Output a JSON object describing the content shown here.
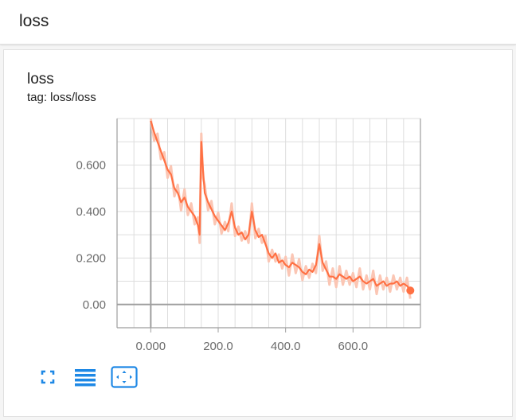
{
  "header": {
    "title": "loss"
  },
  "card": {
    "title": "loss",
    "tag": "tag: loss/loss"
  },
  "colors": {
    "series": "#ff7043",
    "series_light": "#fbc6b4",
    "icon": "#1e88e5",
    "grid": "#dddddd",
    "axis": "#9e9e9e"
  },
  "icons": [
    "fit-domain-icon",
    "toggle-log-scale-icon",
    "reset-zoom-icon"
  ],
  "chart_data": {
    "type": "line",
    "title": "",
    "xlabel": "",
    "ylabel": "",
    "xlim": [
      -100,
      800
    ],
    "ylim": [
      -0.1,
      0.8
    ],
    "x_ticks": [
      0,
      200,
      400,
      600
    ],
    "x_tick_labels": [
      "0.000",
      "200.0",
      "400.0",
      "600.0"
    ],
    "y_ticks": [
      0,
      0.2,
      0.4,
      0.6
    ],
    "y_tick_labels": [
      "0.00",
      "0.200",
      "0.400",
      "0.600"
    ],
    "grid": true,
    "series": [
      {
        "name": "",
        "smoothed": true,
        "x": [
          0,
          10,
          20,
          30,
          40,
          50,
          60,
          70,
          80,
          90,
          100,
          110,
          120,
          130,
          140,
          145,
          150,
          155,
          160,
          170,
          180,
          190,
          200,
          210,
          220,
          230,
          240,
          250,
          260,
          270,
          280,
          290,
          300,
          310,
          320,
          330,
          340,
          350,
          360,
          370,
          380,
          390,
          400,
          410,
          420,
          430,
          440,
          450,
          460,
          470,
          480,
          490,
          500,
          510,
          520,
          530,
          540,
          550,
          560,
          570,
          580,
          590,
          600,
          610,
          620,
          630,
          640,
          650,
          660,
          670,
          680,
          690,
          700,
          710,
          720,
          730,
          740,
          750,
          760,
          770
        ],
        "y": [
          0.79,
          0.74,
          0.7,
          0.66,
          0.62,
          0.58,
          0.56,
          0.5,
          0.48,
          0.44,
          0.46,
          0.42,
          0.4,
          0.38,
          0.34,
          0.3,
          0.7,
          0.58,
          0.48,
          0.44,
          0.41,
          0.38,
          0.36,
          0.34,
          0.32,
          0.35,
          0.4,
          0.33,
          0.3,
          0.31,
          0.28,
          0.3,
          0.4,
          0.32,
          0.29,
          0.3,
          0.26,
          0.22,
          0.2,
          0.22,
          0.18,
          0.19,
          0.17,
          0.16,
          0.18,
          0.17,
          0.16,
          0.14,
          0.13,
          0.15,
          0.14,
          0.17,
          0.26,
          0.18,
          0.15,
          0.12,
          0.12,
          0.11,
          0.13,
          0.12,
          0.11,
          0.12,
          0.1,
          0.11,
          0.12,
          0.1,
          0.09,
          0.1,
          0.11,
          0.08,
          0.09,
          0.1,
          0.08,
          0.09,
          0.09,
          0.1,
          0.08,
          0.09,
          0.08,
          0.06
        ]
      }
    ]
  }
}
